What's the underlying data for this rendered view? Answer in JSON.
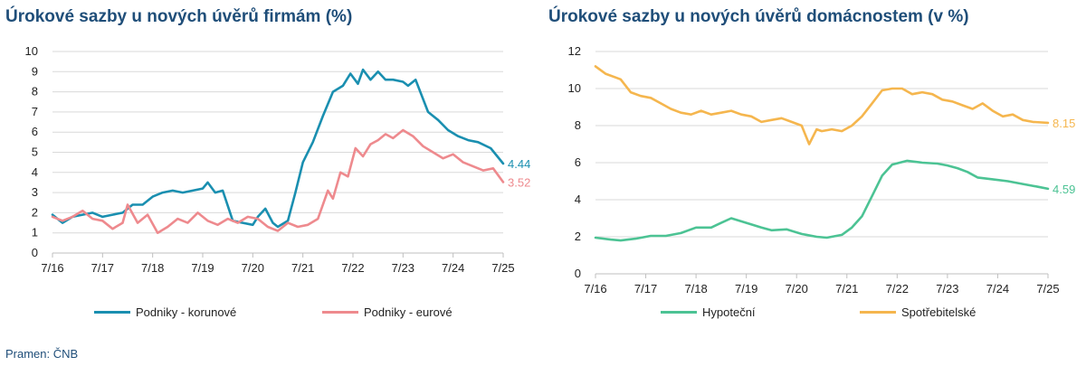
{
  "colors": {
    "korunove": "#1a8fb0",
    "eurove": "#ee8a8e",
    "hypotecni": "#4cc394",
    "spotrebitelske": "#f5b64e",
    "grid": "#d9d9d9"
  },
  "source": "Pramen: ČNB",
  "chart_data": [
    {
      "type": "line",
      "title": "Úrokové sazby u nových úvěrů firmám (%)",
      "xlabel": "",
      "ylabel": "",
      "x_ticks": [
        "7/16",
        "7/17",
        "7/18",
        "7/19",
        "7/20",
        "7/21",
        "7/22",
        "7/23",
        "7/24",
        "7/25"
      ],
      "y_ticks": [
        0,
        1,
        2,
        3,
        4,
        5,
        6,
        7,
        8,
        9,
        10
      ],
      "ylim": [
        0,
        10
      ],
      "grid": true,
      "legend": "bottom",
      "series": [
        {
          "name": "Podniky - korunové",
          "end_label": "4.44",
          "x": [
            2016.5,
            2016.7,
            2016.9,
            2017.1,
            2017.3,
            2017.5,
            2017.7,
            2017.9,
            2018.1,
            2018.3,
            2018.5,
            2018.7,
            2018.9,
            2019.1,
            2019.3,
            2019.5,
            2019.6,
            2019.75,
            2019.9,
            2020.1,
            2020.3,
            2020.5,
            2020.6,
            2020.75,
            2020.9,
            2021.0,
            2021.2,
            2021.35,
            2021.5,
            2021.7,
            2021.9,
            2022.1,
            2022.3,
            2022.45,
            2022.6,
            2022.7,
            2022.85,
            2023.0,
            2023.15,
            2023.3,
            2023.5,
            2023.6,
            2023.75,
            2024.0,
            2024.2,
            2024.4,
            2024.6,
            2024.8,
            2025.0,
            2025.25,
            2025.5
          ],
          "y": [
            1.9,
            1.5,
            1.8,
            1.9,
            2.0,
            1.8,
            1.9,
            2.0,
            2.4,
            2.4,
            2.8,
            3.0,
            3.1,
            3.0,
            3.1,
            3.2,
            3.5,
            3.0,
            3.1,
            1.6,
            1.5,
            1.4,
            1.8,
            2.2,
            1.5,
            1.3,
            1.6,
            3.0,
            4.5,
            5.5,
            6.8,
            8.0,
            8.3,
            8.9,
            8.4,
            9.1,
            8.6,
            9.0,
            8.6,
            8.6,
            8.5,
            8.3,
            8.6,
            7.0,
            6.6,
            6.1,
            5.8,
            5.6,
            5.5,
            5.2,
            4.44
          ]
        },
        {
          "name": "Podniky - eurové",
          "end_label": "3.52",
          "x": [
            2016.5,
            2016.7,
            2016.9,
            2017.1,
            2017.3,
            2017.5,
            2017.7,
            2017.9,
            2018.0,
            2018.2,
            2018.4,
            2018.6,
            2018.8,
            2019.0,
            2019.2,
            2019.4,
            2019.6,
            2019.8,
            2020.0,
            2020.2,
            2020.4,
            2020.6,
            2020.8,
            2021.0,
            2021.2,
            2021.4,
            2021.6,
            2021.8,
            2022.0,
            2022.1,
            2022.25,
            2022.4,
            2022.55,
            2022.7,
            2022.85,
            2023.0,
            2023.15,
            2023.3,
            2023.5,
            2023.7,
            2023.9,
            2024.1,
            2024.3,
            2024.5,
            2024.7,
            2024.9,
            2025.1,
            2025.3,
            2025.5
          ],
          "y": [
            1.8,
            1.6,
            1.8,
            2.1,
            1.7,
            1.6,
            1.2,
            1.5,
            2.4,
            1.5,
            1.9,
            1.0,
            1.3,
            1.7,
            1.5,
            2.0,
            1.6,
            1.4,
            1.7,
            1.5,
            1.8,
            1.7,
            1.3,
            1.1,
            1.5,
            1.3,
            1.4,
            1.7,
            3.1,
            2.7,
            4.0,
            3.8,
            5.2,
            4.8,
            5.4,
            5.6,
            5.9,
            5.7,
            6.1,
            5.8,
            5.3,
            5.0,
            4.7,
            4.9,
            4.5,
            4.3,
            4.1,
            4.2,
            3.52
          ]
        }
      ]
    },
    {
      "type": "line",
      "title": "Úrokové sazby u nových úvěrů domácnostem (v %)",
      "xlabel": "",
      "ylabel": "",
      "x_ticks": [
        "7/16",
        "7/17",
        "7/18",
        "7/19",
        "7/20",
        "7/21",
        "7/22",
        "7/23",
        "7/24",
        "7/25"
      ],
      "y_ticks": [
        0,
        2,
        4,
        6,
        8,
        10,
        12
      ],
      "ylim": [
        0,
        12
      ],
      "grid": true,
      "legend": "bottom",
      "series": [
        {
          "name": "Hypoteční",
          "end_label": "4.59",
          "x": [
            2016.5,
            2016.8,
            2017.0,
            2017.3,
            2017.6,
            2017.9,
            2018.2,
            2018.5,
            2018.8,
            2019.0,
            2019.2,
            2019.5,
            2019.8,
            2020.0,
            2020.3,
            2020.6,
            2020.9,
            2021.1,
            2021.4,
            2021.6,
            2021.8,
            2022.0,
            2022.2,
            2022.4,
            2022.7,
            2023.0,
            2023.3,
            2023.5,
            2023.7,
            2023.9,
            2024.1,
            2024.4,
            2024.7,
            2025.0,
            2025.3,
            2025.5
          ],
          "y": [
            1.95,
            1.85,
            1.8,
            1.9,
            2.05,
            2.05,
            2.2,
            2.5,
            2.5,
            2.75,
            3.0,
            2.75,
            2.5,
            2.35,
            2.4,
            2.15,
            2.0,
            1.95,
            2.1,
            2.5,
            3.1,
            4.2,
            5.3,
            5.9,
            6.1,
            6.0,
            5.95,
            5.85,
            5.7,
            5.5,
            5.2,
            5.1,
            5.0,
            4.85,
            4.7,
            4.59
          ]
        },
        {
          "name": "Spotřebitelské",
          "end_label": "8.15",
          "x": [
            2016.5,
            2016.7,
            2016.9,
            2017.0,
            2017.2,
            2017.4,
            2017.6,
            2017.8,
            2018.0,
            2018.2,
            2018.4,
            2018.6,
            2018.8,
            2019.0,
            2019.2,
            2019.4,
            2019.6,
            2019.8,
            2020.0,
            2020.2,
            2020.4,
            2020.6,
            2020.75,
            2020.9,
            2021.0,
            2021.2,
            2021.4,
            2021.6,
            2021.8,
            2022.0,
            2022.2,
            2022.4,
            2022.6,
            2022.8,
            2023.0,
            2023.2,
            2023.4,
            2023.6,
            2023.8,
            2024.0,
            2024.2,
            2024.4,
            2024.6,
            2024.8,
            2025.0,
            2025.2,
            2025.5
          ],
          "y": [
            11.2,
            10.8,
            10.6,
            10.5,
            9.8,
            9.6,
            9.5,
            9.2,
            8.9,
            8.7,
            8.6,
            8.8,
            8.6,
            8.7,
            8.8,
            8.6,
            8.5,
            8.2,
            8.3,
            8.4,
            8.2,
            8.0,
            7.0,
            7.8,
            7.7,
            7.8,
            7.7,
            8.0,
            8.5,
            9.2,
            9.9,
            10.0,
            10.0,
            9.7,
            9.8,
            9.7,
            9.4,
            9.3,
            9.1,
            8.9,
            9.2,
            8.8,
            8.5,
            8.6,
            8.3,
            8.2,
            8.15
          ]
        }
      ]
    }
  ]
}
